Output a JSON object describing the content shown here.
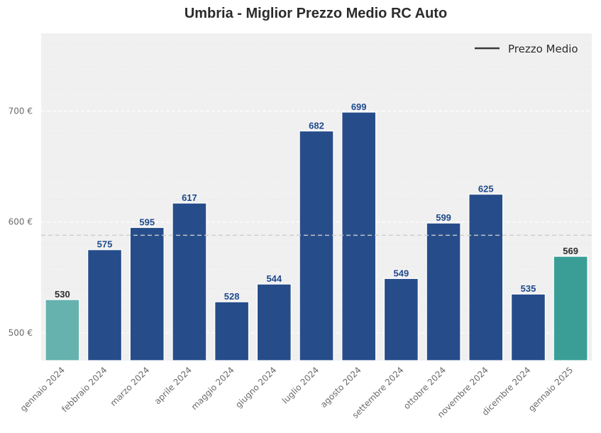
{
  "chart_data": {
    "type": "bar",
    "title": "Umbria - Miglior Prezzo Medio RC Auto",
    "xlabel": "",
    "ylabel": "",
    "categories": [
      "gennaio 2024",
      "febbraio 2024",
      "marzo 2024",
      "aprile 2024",
      "maggio 2024",
      "giugno 2024",
      "luglio 2024",
      "agosto 2024",
      "settembre 2024",
      "ottobre 2024",
      "novembre 2024",
      "dicembre 2024",
      "gennaio 2025"
    ],
    "values": [
      530,
      575,
      595,
      617,
      528,
      544,
      682,
      699,
      549,
      599,
      625,
      535,
      569
    ],
    "value_labels": [
      "530",
      "575",
      "595",
      "617",
      "528",
      "544",
      "682",
      "699",
      "549",
      "599",
      "625",
      "535",
      "569"
    ],
    "bar_colors": [
      "#66b2ae",
      "#264d8a",
      "#264d8a",
      "#264d8a",
      "#264d8a",
      "#264d8a",
      "#264d8a",
      "#264d8a",
      "#264d8a",
      "#264d8a",
      "#264d8a",
      "#264d8a",
      "#3a9e96"
    ],
    "label_colors": [
      "#2b2b2b",
      "#1f4a8c",
      "#1f4a8c",
      "#1f4a8c",
      "#1f4a8c",
      "#1f4a8c",
      "#1f4a8c",
      "#1f4a8c",
      "#1f4a8c",
      "#1f4a8c",
      "#1f4a8c",
      "#1f4a8c",
      "#2b2b2b"
    ],
    "ylim": [
      475,
      770
    ],
    "yticks": [
      500,
      600,
      700
    ],
    "ytick_labels": [
      "500 €",
      "600 €",
      "700 €"
    ],
    "mean_line": {
      "value": 588,
      "label": "Prezzo Medio"
    },
    "legend": {
      "position": "top-right",
      "entries": [
        "Prezzo Medio"
      ]
    },
    "grid": true,
    "colors": {
      "background": "#f0f0f0",
      "grid": "#ffffff",
      "mean_line": "#cccccc",
      "title": "#2b2b2b"
    }
  }
}
